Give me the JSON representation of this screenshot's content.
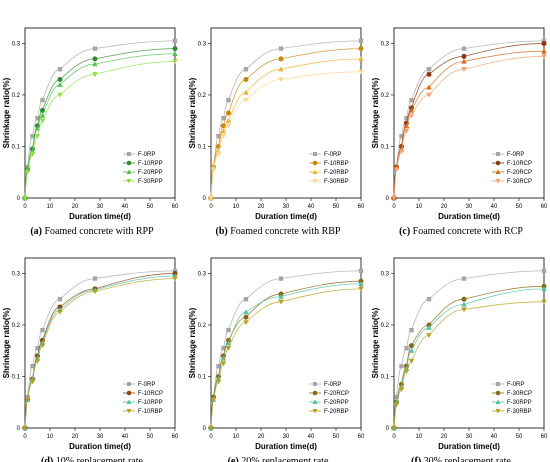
{
  "chart_data": [
    {
      "type": "scatter",
      "caption_id": "(a)",
      "caption_text": "Foamed concrete with RPP",
      "xlabel": "Duration time(d)",
      "ylabel": "Shrinkage ratio(%)",
      "xlim": [
        0,
        60
      ],
      "ylim": [
        0,
        0.33
      ],
      "xticks": [
        "0",
        "10",
        "20",
        "30",
        "40",
        "50",
        "60"
      ],
      "yticks": [
        "0",
        "0.1",
        "0.2",
        "0.3"
      ],
      "legend_position": "bottom-right",
      "x": [
        0,
        1,
        3,
        5,
        7,
        14,
        28,
        60
      ],
      "series": [
        {
          "name": "F-0RP",
          "marker": "square",
          "color": "#a6a6a6",
          "values": [
            0,
            0.06,
            0.12,
            0.155,
            0.19,
            0.25,
            0.29,
            0.305
          ]
        },
        {
          "name": "F-10RPP",
          "marker": "circle",
          "color": "#2e8b2e",
          "values": [
            0,
            0.055,
            0.095,
            0.14,
            0.17,
            0.23,
            0.27,
            0.29
          ]
        },
        {
          "name": "F-20RPP",
          "marker": "triangle-up",
          "color": "#4fc24f",
          "values": [
            0,
            0.055,
            0.09,
            0.135,
            0.16,
            0.22,
            0.26,
            0.28
          ]
        },
        {
          "name": "F-30RPP",
          "marker": "triangle-down",
          "color": "#8fe040",
          "values": [
            0,
            0.05,
            0.085,
            0.12,
            0.15,
            0.2,
            0.24,
            0.265
          ]
        }
      ]
    },
    {
      "type": "scatter",
      "caption_id": "(b)",
      "caption_text": "Foamed concrete with RBP",
      "xlabel": "Duration time(d)",
      "ylabel": "Shrinkage ratio(%)",
      "xlim": [
        0,
        60
      ],
      "ylim": [
        0,
        0.33
      ],
      "xticks": [
        "0",
        "10",
        "20",
        "30",
        "40",
        "50",
        "60"
      ],
      "yticks": [
        "0",
        "0.1",
        "0.2",
        "0.3"
      ],
      "legend_position": "bottom-right",
      "x": [
        0,
        1,
        3,
        5,
        7,
        14,
        28,
        60
      ],
      "series": [
        {
          "name": "F-0RP",
          "marker": "square",
          "color": "#a6a6a6",
          "values": [
            0,
            0.06,
            0.12,
            0.155,
            0.19,
            0.25,
            0.29,
            0.305
          ]
        },
        {
          "name": "F-10RBP",
          "marker": "circle",
          "color": "#c8860a",
          "values": [
            0,
            0.06,
            0.1,
            0.14,
            0.165,
            0.23,
            0.27,
            0.29
          ]
        },
        {
          "name": "F-20RBP",
          "marker": "triangle-up",
          "color": "#f0b030",
          "values": [
            0,
            0.06,
            0.09,
            0.13,
            0.15,
            0.205,
            0.25,
            0.27
          ]
        },
        {
          "name": "F-30RBP",
          "marker": "triangle-down",
          "color": "#f8d890",
          "values": [
            0,
            0.055,
            0.085,
            0.12,
            0.14,
            0.19,
            0.23,
            0.245
          ]
        }
      ]
    },
    {
      "type": "scatter",
      "caption_id": "(c)",
      "caption_text": "Foamed concrete with RCP",
      "xlabel": "Duration time(d)",
      "ylabel": "Shrinkage ratio(%)",
      "xlim": [
        0,
        60
      ],
      "ylim": [
        0,
        0.33
      ],
      "xticks": [
        "0",
        "10",
        "20",
        "30",
        "40",
        "50",
        "60"
      ],
      "yticks": [
        "0",
        "0.1",
        "0.2",
        "0.3"
      ],
      "legend_position": "bottom-right",
      "x": [
        0,
        1,
        3,
        5,
        7,
        14,
        28,
        60
      ],
      "series": [
        {
          "name": "F-0RP",
          "marker": "square",
          "color": "#a6a6a6",
          "values": [
            0,
            0.06,
            0.12,
            0.155,
            0.19,
            0.25,
            0.29,
            0.305
          ]
        },
        {
          "name": "F-10RCP",
          "marker": "circle",
          "color": "#8b3a0e",
          "values": [
            0,
            0.06,
            0.1,
            0.145,
            0.175,
            0.24,
            0.275,
            0.3
          ]
        },
        {
          "name": "F-20RCP",
          "marker": "triangle-up",
          "color": "#d2691e",
          "values": [
            0,
            0.06,
            0.095,
            0.14,
            0.17,
            0.215,
            0.265,
            0.285
          ]
        },
        {
          "name": "F-30RCP",
          "marker": "triangle-down",
          "color": "#f4a070",
          "values": [
            0,
            0.055,
            0.09,
            0.13,
            0.16,
            0.2,
            0.25,
            0.275
          ]
        }
      ]
    },
    {
      "type": "scatter",
      "caption_id": "(d)",
      "caption_text": "10% replacement rate",
      "xlabel": "Duration time(d)",
      "ylabel": "Shrinkage ratio(%)",
      "xlim": [
        0,
        60
      ],
      "ylim": [
        0,
        0.33
      ],
      "xticks": [
        "0",
        "10",
        "20",
        "30",
        "40",
        "50",
        "60"
      ],
      "yticks": [
        "0",
        "0.1",
        "0.2",
        "0.3"
      ],
      "legend_position": "bottom-right",
      "x": [
        0,
        1,
        3,
        5,
        7,
        14,
        28,
        60
      ],
      "series": [
        {
          "name": "F-0RP",
          "marker": "square",
          "color": "#a6a6a6",
          "values": [
            0,
            0.06,
            0.12,
            0.155,
            0.19,
            0.25,
            0.29,
            0.305
          ]
        },
        {
          "name": "F-10RCP",
          "marker": "circle",
          "color": "#8b4513",
          "values": [
            0,
            0.055,
            0.095,
            0.14,
            0.17,
            0.235,
            0.27,
            0.3
          ]
        },
        {
          "name": "F-10RPP",
          "marker": "triangle-up",
          "color": "#4fc2a0",
          "values": [
            0,
            0.055,
            0.095,
            0.135,
            0.165,
            0.23,
            0.268,
            0.295
          ]
        },
        {
          "name": "F-10RBP",
          "marker": "triangle-down",
          "color": "#b8a020",
          "values": [
            0,
            0.055,
            0.09,
            0.13,
            0.16,
            0.225,
            0.265,
            0.29
          ]
        }
      ]
    },
    {
      "type": "scatter",
      "caption_id": "(e)",
      "caption_text": "20% replacement rate",
      "xlabel": "Duration time(d)",
      "ylabel": "Shrinkage ratio(%)",
      "xlim": [
        0,
        60
      ],
      "ylim": [
        0,
        0.33
      ],
      "xticks": [
        "0",
        "10",
        "20",
        "30",
        "40",
        "50",
        "60"
      ],
      "yticks": [
        "0",
        "0.1",
        "0.2",
        "0.3"
      ],
      "legend_position": "bottom-right",
      "x": [
        0,
        1,
        3,
        5,
        7,
        14,
        28,
        60
      ],
      "series": [
        {
          "name": "F-0RP",
          "marker": "square",
          "color": "#a6a6a6",
          "values": [
            0,
            0.06,
            0.12,
            0.155,
            0.19,
            0.25,
            0.29,
            0.305
          ]
        },
        {
          "name": "F-20RCP",
          "marker": "circle",
          "color": "#8b6914",
          "values": [
            0,
            0.06,
            0.1,
            0.14,
            0.17,
            0.215,
            0.26,
            0.285
          ]
        },
        {
          "name": "F-20RPP",
          "marker": "triangle-up",
          "color": "#4fc2a0",
          "values": [
            0,
            0.055,
            0.095,
            0.135,
            0.165,
            0.225,
            0.255,
            0.28
          ]
        },
        {
          "name": "F-20RBP",
          "marker": "triangle-down",
          "color": "#b8a020",
          "values": [
            0,
            0.055,
            0.09,
            0.125,
            0.155,
            0.205,
            0.245,
            0.27
          ]
        }
      ]
    },
    {
      "type": "scatter",
      "caption_id": "(f)",
      "caption_text": "30% replacement rate",
      "xlabel": "Duration time(d)",
      "ylabel": "Shrinkage ratio(%)",
      "xlim": [
        0,
        60
      ],
      "ylim": [
        0,
        0.33
      ],
      "xticks": [
        "0",
        "10",
        "20",
        "30",
        "40",
        "50",
        "60"
      ],
      "yticks": [
        "0",
        "0.1",
        "0.2",
        "0.3"
      ],
      "legend_position": "bottom-right",
      "x": [
        0,
        1,
        3,
        5,
        7,
        14,
        28,
        60
      ],
      "series": [
        {
          "name": "F-0RP",
          "marker": "square",
          "color": "#a6a6a6",
          "values": [
            0,
            0.06,
            0.12,
            0.155,
            0.19,
            0.25,
            0.29,
            0.305
          ]
        },
        {
          "name": "F-30RCP",
          "marker": "circle",
          "color": "#8b6914",
          "values": [
            0,
            0.05,
            0.085,
            0.12,
            0.16,
            0.2,
            0.25,
            0.275
          ]
        },
        {
          "name": "F-30RPP",
          "marker": "triangle-up",
          "color": "#4fc2a0",
          "values": [
            0,
            0.05,
            0.08,
            0.115,
            0.15,
            0.195,
            0.24,
            0.27
          ]
        },
        {
          "name": "F-30RBP",
          "marker": "triangle-down",
          "color": "#b8a020",
          "values": [
            0,
            0.045,
            0.075,
            0.11,
            0.13,
            0.18,
            0.23,
            0.245
          ]
        }
      ]
    }
  ]
}
